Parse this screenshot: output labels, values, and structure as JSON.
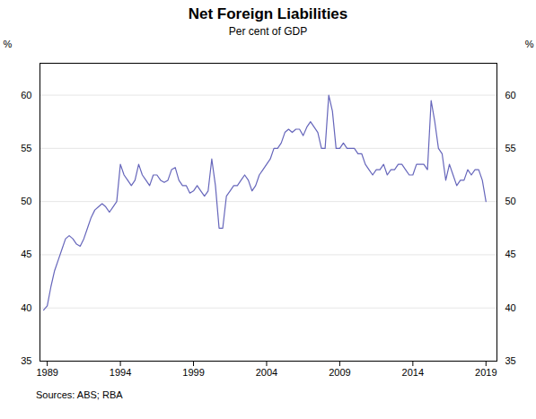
{
  "chart_data": {
    "type": "line",
    "title": "Net Foreign Liabilities",
    "subtitle": "Per cent of GDP",
    "ylabel": "%",
    "y2label": "%",
    "source": "Sources:  ABS; RBA",
    "color": "#6666bb",
    "grid": true,
    "xlim": [
      1988.5,
      2019.75
    ],
    "xticks": [
      1989,
      1994,
      1999,
      2004,
      2009,
      2014,
      2019
    ],
    "ylim": [
      35,
      63
    ],
    "yticks": [
      35,
      40,
      45,
      50,
      55,
      60
    ],
    "y2lim": [
      35,
      63
    ],
    "y2ticks": [
      35,
      40,
      45,
      50,
      55,
      60
    ],
    "x": [
      1988.75,
      1989.0,
      1989.25,
      1989.5,
      1989.75,
      1990.0,
      1990.25,
      1990.5,
      1990.75,
      1991.0,
      1991.25,
      1991.5,
      1991.75,
      1992.0,
      1992.25,
      1992.5,
      1992.75,
      1993.0,
      1993.25,
      1993.5,
      1993.75,
      1994.0,
      1994.25,
      1994.5,
      1994.75,
      1995.0,
      1995.25,
      1995.5,
      1995.75,
      1996.0,
      1996.25,
      1996.5,
      1996.75,
      1997.0,
      1997.25,
      1997.5,
      1997.75,
      1998.0,
      1998.25,
      1998.5,
      1998.75,
      1999.0,
      1999.25,
      1999.5,
      1999.75,
      2000.0,
      2000.25,
      2000.5,
      2000.75,
      2001.0,
      2001.25,
      2001.5,
      2001.75,
      2002.0,
      2002.25,
      2002.5,
      2002.75,
      2003.0,
      2003.25,
      2003.5,
      2003.75,
      2004.0,
      2004.25,
      2004.5,
      2004.75,
      2005.0,
      2005.25,
      2005.5,
      2005.75,
      2006.0,
      2006.25,
      2006.5,
      2006.75,
      2007.0,
      2007.25,
      2007.5,
      2007.75,
      2008.0,
      2008.25,
      2008.5,
      2008.75,
      2009.0,
      2009.25,
      2009.5,
      2009.75,
      2010.0,
      2010.25,
      2010.5,
      2010.75,
      2011.0,
      2011.25,
      2011.5,
      2011.75,
      2012.0,
      2012.25,
      2012.5,
      2012.75,
      2013.0,
      2013.25,
      2013.5,
      2013.75,
      2014.0,
      2014.25,
      2014.5,
      2014.75,
      2015.0,
      2015.25,
      2015.5,
      2015.75,
      2016.0,
      2016.25,
      2016.5,
      2016.75,
      2017.0,
      2017.25,
      2017.5,
      2017.75,
      2018.0,
      2018.25,
      2018.5,
      2018.75,
      2019.0
    ],
    "values": [
      39.8,
      40.2,
      42.0,
      43.5,
      44.5,
      45.5,
      46.5,
      46.8,
      46.5,
      46.0,
      45.8,
      46.5,
      47.5,
      48.5,
      49.2,
      49.5,
      49.8,
      49.5,
      49.0,
      49.5,
      50.0,
      53.5,
      52.5,
      52.0,
      51.5,
      52.0,
      53.5,
      52.5,
      52.0,
      51.5,
      52.5,
      52.5,
      52.0,
      51.8,
      52.0,
      53.0,
      53.2,
      52.0,
      51.5,
      51.5,
      50.8,
      51.0,
      51.5,
      51.0,
      50.5,
      51.0,
      54.0,
      51.5,
      47.5,
      47.5,
      50.5,
      51.0,
      51.5,
      51.5,
      52.0,
      52.5,
      52.0,
      51.0,
      51.5,
      52.5,
      53.0,
      53.5,
      54.0,
      55.0,
      55.0,
      55.5,
      56.5,
      56.8,
      56.5,
      56.8,
      56.8,
      56.2,
      57.0,
      57.5,
      57.0,
      56.5,
      55.0,
      55.0,
      60.0,
      58.5,
      55.0,
      55.0,
      55.5,
      55.0,
      55.0,
      55.0,
      54.5,
      54.5,
      53.5,
      53.0,
      52.5,
      53.0,
      53.0,
      53.5,
      52.5,
      53.0,
      53.0,
      53.5,
      53.5,
      53.0,
      52.5,
      52.5,
      53.5,
      53.5,
      53.5,
      53.0,
      59.5,
      57.5,
      55.0,
      54.5,
      52.0,
      53.5,
      52.5,
      51.5,
      52.0,
      52.0,
      53.0,
      52.5,
      53.0,
      53.0,
      52.0,
      50.0
    ]
  }
}
